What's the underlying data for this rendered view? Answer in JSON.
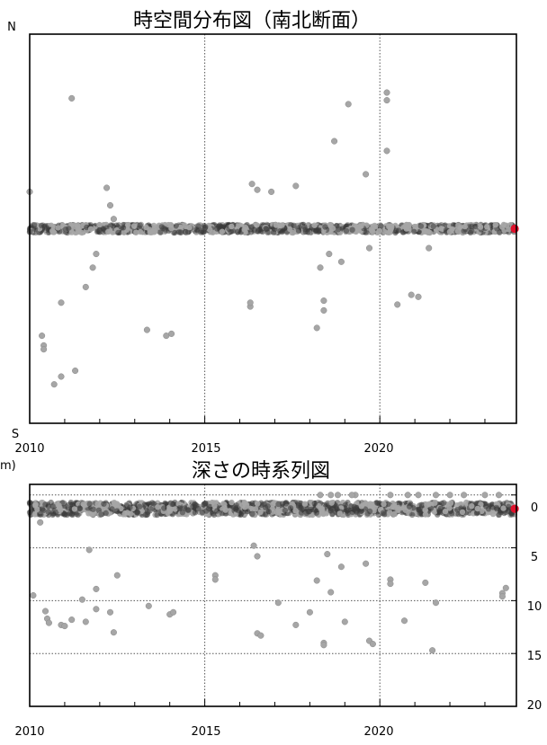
{
  "colors": {
    "point": "#a6a6a6",
    "point_edge": "#8a8a8a",
    "band": "#3a3a3a",
    "latest": "#e0102a",
    "frame": "#000000",
    "grid": "#555555"
  },
  "chart_data": [
    {
      "type": "scatter",
      "title": "時空間分布図（南北断面）",
      "xlabel": "",
      "ylabel": "",
      "x_ticks": [
        "2010",
        "2015",
        "2020"
      ],
      "y_end_labels": {
        "top": "N",
        "bottom": "S"
      },
      "xlim": [
        2010,
        2023.9
      ],
      "ylim": [
        -1,
        1
      ],
      "grid": "vertical dotted at 2015 and 2020",
      "band": {
        "x_start": 2010.0,
        "x_end": 2023.85,
        "y": 0.0,
        "note": "dense cluster of hypocenters"
      },
      "points": [
        [
          2010.0,
          0.19
        ],
        [
          2010.35,
          -0.55
        ],
        [
          2010.4,
          -0.6
        ],
        [
          2010.4,
          -0.62
        ],
        [
          2010.7,
          -0.8
        ],
        [
          2010.9,
          -0.76
        ],
        [
          2010.9,
          -0.38
        ],
        [
          2011.2,
          0.67
        ],
        [
          2011.3,
          -0.73
        ],
        [
          2011.6,
          -0.3
        ],
        [
          2011.8,
          -0.2
        ],
        [
          2011.9,
          -0.13
        ],
        [
          2012.2,
          0.21
        ],
        [
          2012.3,
          0.12
        ],
        [
          2012.4,
          0.05
        ],
        [
          2013.35,
          -0.52
        ],
        [
          2013.9,
          -0.55
        ],
        [
          2014.05,
          -0.54
        ],
        [
          2016.3,
          -0.4
        ],
        [
          2016.3,
          -0.38
        ],
        [
          2016.35,
          0.23
        ],
        [
          2016.5,
          0.2
        ],
        [
          2016.9,
          0.19
        ],
        [
          2017.6,
          0.22
        ],
        [
          2018.2,
          -0.51
        ],
        [
          2018.3,
          -0.2
        ],
        [
          2018.4,
          -0.37
        ],
        [
          2018.4,
          -0.42
        ],
        [
          2018.55,
          -0.13
        ],
        [
          2018.7,
          0.45
        ],
        [
          2018.9,
          -0.17
        ],
        [
          2019.1,
          0.64
        ],
        [
          2019.6,
          0.28
        ],
        [
          2019.7,
          -0.1
        ],
        [
          2020.2,
          0.7
        ],
        [
          2020.2,
          0.66
        ],
        [
          2020.2,
          0.4
        ],
        [
          2020.5,
          -0.39
        ],
        [
          2020.9,
          -0.34
        ],
        [
          2021.1,
          -0.35
        ],
        [
          2021.4,
          -0.1
        ]
      ],
      "latest": [
        23.85,
        0.0
      ]
    },
    {
      "type": "scatter",
      "title": "深さの時系列図",
      "xlabel": "",
      "ylabel": "",
      "x_ticks": [
        "2010",
        "2015",
        "2020"
      ],
      "y_ticks": [
        "0",
        "5",
        "10",
        "15",
        "20"
      ],
      "y_left_fragment": "m)",
      "xlim": [
        2010,
        2023.9
      ],
      "ylim": [
        20,
        -1
      ],
      "grid": "horizontal dotted at 0,5,10,15; vertical dotted at 2015,2020",
      "band": {
        "x_start": 2010.0,
        "x_end": 2023.85,
        "y": 1.3,
        "note": "dense cluster of hypocenters near 1-2 km"
      },
      "points": [
        [
          2010.1,
          9.5
        ],
        [
          2010.3,
          2.6
        ],
        [
          2010.45,
          11.0
        ],
        [
          2010.5,
          11.7
        ],
        [
          2010.55,
          12.1
        ],
        [
          2010.9,
          12.3
        ],
        [
          2011.0,
          12.4
        ],
        [
          2011.2,
          11.8
        ],
        [
          2011.5,
          9.9
        ],
        [
          2011.6,
          12.0
        ],
        [
          2011.7,
          5.2
        ],
        [
          2011.9,
          8.9
        ],
        [
          2011.9,
          10.8
        ],
        [
          2012.3,
          11.1
        ],
        [
          2012.4,
          13.0
        ],
        [
          2012.5,
          7.6
        ],
        [
          2013.4,
          10.5
        ],
        [
          2014.0,
          11.3
        ],
        [
          2014.1,
          11.1
        ],
        [
          2015.3,
          7.6
        ],
        [
          2015.3,
          8.0
        ],
        [
          2016.4,
          4.8
        ],
        [
          2016.5,
          5.8
        ],
        [
          2016.5,
          13.1
        ],
        [
          2016.6,
          13.3
        ],
        [
          2017.1,
          10.2
        ],
        [
          2017.6,
          12.3
        ],
        [
          2018.0,
          11.1
        ],
        [
          2018.2,
          8.1
        ],
        [
          2018.4,
          14.0
        ],
        [
          2018.4,
          14.2
        ],
        [
          2018.5,
          5.6
        ],
        [
          2018.6,
          9.2
        ],
        [
          2018.9,
          6.8
        ],
        [
          2019.0,
          12.0
        ],
        [
          2019.3,
          0.0
        ],
        [
          2019.6,
          6.5
        ],
        [
          2019.7,
          13.8
        ],
        [
          2019.8,
          14.1
        ],
        [
          2020.3,
          8.0
        ],
        [
          2020.3,
          8.4
        ],
        [
          2020.7,
          11.9
        ],
        [
          2021.3,
          8.3
        ],
        [
          2021.5,
          14.7
        ],
        [
          2021.6,
          10.2
        ],
        [
          2018.3,
          0.0
        ],
        [
          2018.6,
          0.0
        ],
        [
          2018.8,
          0.0
        ],
        [
          2019.2,
          0.0
        ],
        [
          2020.3,
          0.0
        ],
        [
          2020.8,
          0.0
        ],
        [
          2021.1,
          0.0
        ],
        [
          2021.6,
          0.0
        ],
        [
          2022.0,
          0.0
        ],
        [
          2022.4,
          0.0
        ],
        [
          2023.0,
          0.0
        ],
        [
          2023.4,
          0.0
        ],
        [
          2023.5,
          9.3
        ],
        [
          2023.5,
          9.6
        ],
        [
          2023.6,
          8.8
        ]
      ],
      "latest": [
        23.85,
        1.3
      ]
    }
  ]
}
